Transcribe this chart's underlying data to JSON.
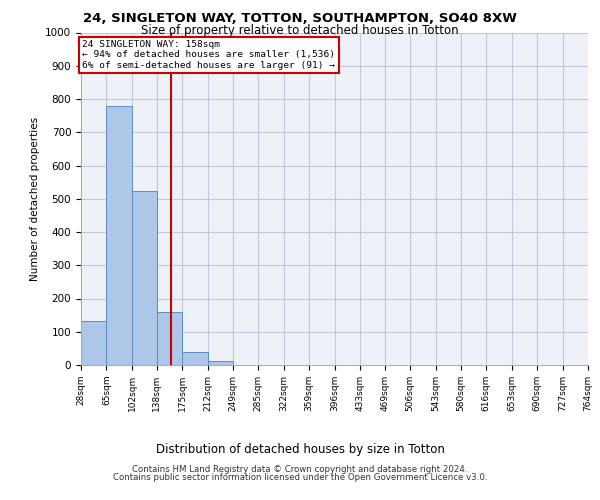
{
  "title1": "24, SINGLETON WAY, TOTTON, SOUTHAMPTON, SO40 8XW",
  "title2": "Size of property relative to detached houses in Totton",
  "xlabel": "Distribution of detached houses by size in Totton",
  "ylabel": "Number of detached properties",
  "bin_edges": [
    28,
    65,
    102,
    138,
    175,
    212,
    249,
    285,
    322,
    359,
    396,
    433,
    469,
    506,
    543,
    580,
    616,
    653,
    690,
    727,
    764
  ],
  "bar_heights": [
    133,
    778,
    524,
    160,
    38,
    12,
    0,
    0,
    0,
    0,
    0,
    0,
    0,
    0,
    0,
    0,
    0,
    0,
    0,
    0
  ],
  "bar_color": "#aec6e8",
  "bar_edge_color": "#5a8fc2",
  "property_size": 158,
  "vline_color": "#cc0000",
  "annotation_text": "24 SINGLETON WAY: 158sqm\n← 94% of detached houses are smaller (1,536)\n6% of semi-detached houses are larger (91) →",
  "annotation_box_color": "#cc0000",
  "ylim": [
    0,
    1000
  ],
  "yticks": [
    0,
    100,
    200,
    300,
    400,
    500,
    600,
    700,
    800,
    900,
    1000
  ],
  "grid_color": "#c0c8d8",
  "bg_color": "#eef2f8",
  "footer1": "Contains HM Land Registry data © Crown copyright and database right 2024.",
  "footer2": "Contains public sector information licensed under the Open Government Licence v3.0."
}
